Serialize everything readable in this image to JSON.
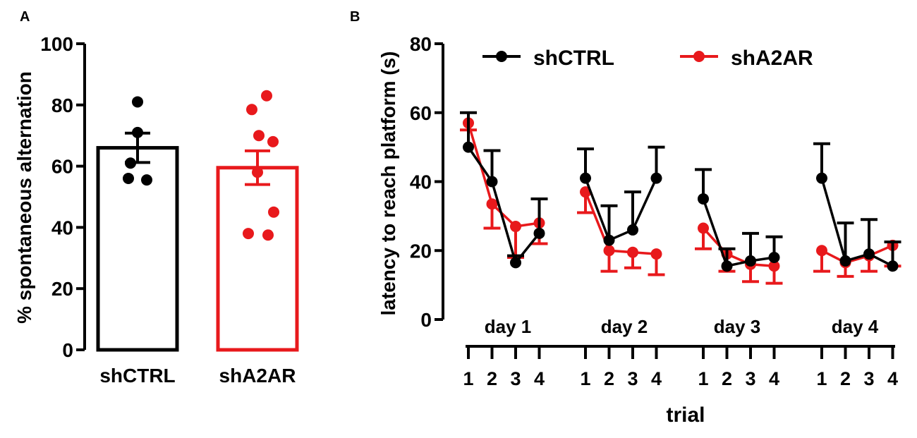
{
  "chart_data": [
    {
      "panel": "A",
      "type": "bar",
      "ylabel": "% spontaneous alternation",
      "xlabel": "",
      "ylim": [
        0,
        100
      ],
      "yticks": [
        0,
        20,
        40,
        60,
        80,
        100
      ],
      "categories": [
        "shCTRL",
        "shA2AR"
      ],
      "values": [
        66,
        59.5
      ],
      "sem": [
        4.8,
        5.5
      ],
      "colors": [
        "#000000",
        "#e8191c"
      ],
      "points": [
        [
          81,
          71,
          61,
          56,
          55.5
        ],
        [
          83,
          78.5,
          70,
          68,
          58,
          45,
          38,
          37.5
        ]
      ]
    },
    {
      "panel": "B",
      "type": "line",
      "ylabel": "latency to reach platform (s)",
      "xlabel": "trial",
      "ylim": [
        0,
        80
      ],
      "yticks": [
        0,
        20,
        40,
        60,
        80
      ],
      "days": [
        "day 1",
        "day 2",
        "day 3",
        "day 4"
      ],
      "trial_labels": [
        "1",
        "2",
        "3",
        "4",
        "1",
        "2",
        "3",
        "4",
        "1",
        "2",
        "3",
        "4",
        "1",
        "2",
        "3",
        "4"
      ],
      "legend_position": "top",
      "series": [
        {
          "name": "shCTRL",
          "color": "#000000",
          "values": [
            50,
            40,
            16.5,
            25,
            41,
            23,
            26,
            41,
            35,
            15.5,
            17,
            18,
            41,
            17,
            19,
            15.5
          ],
          "err": [
            10,
            9,
            2,
            10,
            8.5,
            10,
            11,
            9,
            8.5,
            5,
            8,
            6,
            10,
            11,
            10,
            7
          ]
        },
        {
          "name": "shA2AR",
          "color": "#e8191c",
          "values": [
            57,
            33.5,
            27,
            28,
            37,
            20,
            19.5,
            19,
            26.5,
            19,
            16,
            15.5,
            20,
            16.5,
            18.5,
            21.5
          ],
          "err": [
            2,
            7,
            9,
            6,
            6,
            6,
            4.5,
            6,
            6,
            5,
            5,
            5,
            6,
            4,
            4.5,
            6
          ]
        }
      ]
    }
  ]
}
